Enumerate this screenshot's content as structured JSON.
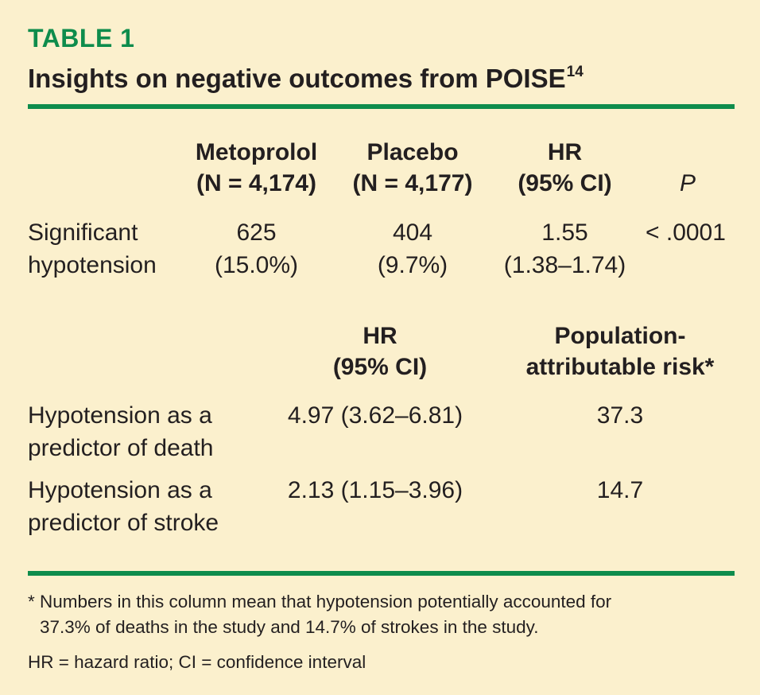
{
  "table_label": "TABLE 1",
  "title": "Insights on negative outcomes from POISE",
  "title_ref": "14",
  "section1": {
    "headers": {
      "metoprolol": [
        "Metoprolol",
        "(N = 4,174)"
      ],
      "placebo": [
        "Placebo",
        "(N = 4,177)"
      ],
      "hr": [
        "HR",
        "(95% CI)"
      ],
      "p": "P"
    },
    "row": {
      "label": [
        "Significant",
        "hypotension"
      ],
      "metoprolol": [
        "625",
        "(15.0%)"
      ],
      "placebo": [
        "404",
        "(9.7%)"
      ],
      "hr": [
        "1.55",
        "(1.38–1.74)"
      ],
      "p": "< .0001"
    }
  },
  "section2": {
    "headers": {
      "hr": [
        "HR",
        "(95% CI)"
      ],
      "par": [
        "Population-",
        "attributable risk*"
      ]
    },
    "rows": [
      {
        "label": [
          "Hypotension as a",
          "predictor of death"
        ],
        "hr": "4.97 (3.62–6.81)",
        "par": "37.3"
      },
      {
        "label": [
          "Hypotension as a",
          "predictor of stroke"
        ],
        "hr": "2.13 (1.15–3.96)",
        "par": "14.7"
      }
    ]
  },
  "footnotes": {
    "asterisk": [
      "* Numbers in this column mean that hypotension potentially accounted for",
      "37.3% of deaths in the study and 14.7% of strokes in the study."
    ],
    "abbrev": "HR = hazard ratio; CI = confidence interval"
  },
  "colors": {
    "accent": "#0e8c4c",
    "background": "#fbf0cd",
    "text": "#231f20"
  }
}
